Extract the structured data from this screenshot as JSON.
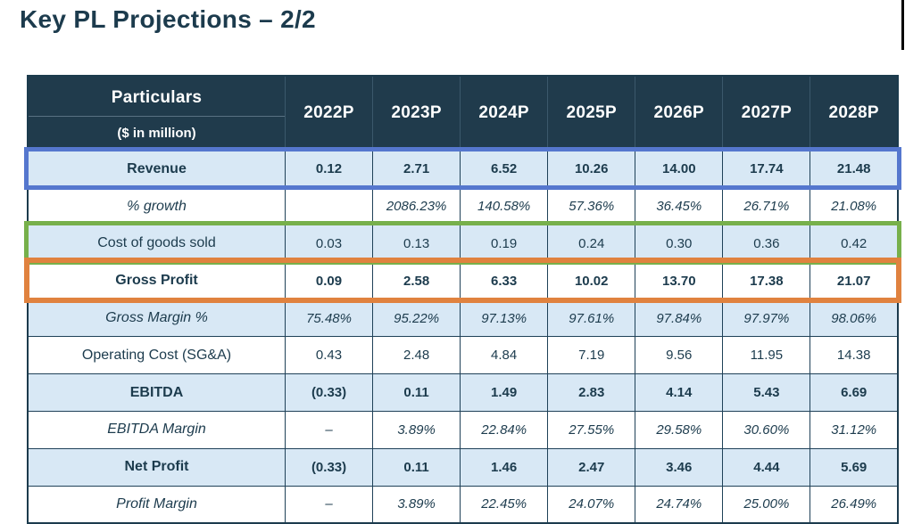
{
  "page": {
    "title": "Key PL Projections – 2/2"
  },
  "colors": {
    "title_text": "#1c3b4d",
    "header_bg": "#203b4c",
    "band_row_bg": "#d8e8f5",
    "cell_text": "#1c3b4d",
    "grid_border": "#1f4158",
    "revenue_box": "#5577ce",
    "cogs_box": "#77b04b",
    "gross_profit_box": "#e0823f",
    "edge_bar": "#000000"
  },
  "table": {
    "header": {
      "particulars": "Particulars",
      "unit_note": "($ in million)",
      "years": [
        "2022P",
        "2023P",
        "2024P",
        "2025P",
        "2026P",
        "2027P",
        "2028P"
      ]
    },
    "rows": [
      {
        "label": "Revenue",
        "style": "bold",
        "band": true,
        "highlight": "blue",
        "values": [
          "0.12",
          "2.71",
          "6.52",
          "10.26",
          "14.00",
          "17.74",
          "21.48"
        ]
      },
      {
        "label": "% growth",
        "style": "italic",
        "band": false,
        "highlight": null,
        "values": [
          "",
          "2086.23%",
          "140.58%",
          "57.36%",
          "36.45%",
          "26.71%",
          "21.08%"
        ]
      },
      {
        "label": "Cost of goods sold",
        "style": "regular",
        "band": true,
        "highlight": "green",
        "values": [
          "0.03",
          "0.13",
          "0.19",
          "0.24",
          "0.30",
          "0.36",
          "0.42"
        ]
      },
      {
        "label": "Gross Profit",
        "style": "bold",
        "band": false,
        "highlight": "orange",
        "values": [
          "0.09",
          "2.58",
          "6.33",
          "10.02",
          "13.70",
          "17.38",
          "21.07"
        ]
      },
      {
        "label": "Gross Margin %",
        "style": "italic",
        "band": true,
        "highlight": null,
        "values": [
          "75.48%",
          "95.22%",
          "97.13%",
          "97.61%",
          "97.84%",
          "97.97%",
          "98.06%"
        ]
      },
      {
        "label": "Operating Cost (SG&A)",
        "style": "regular",
        "band": false,
        "highlight": null,
        "values": [
          "0.43",
          "2.48",
          "4.84",
          "7.19",
          "9.56",
          "11.95",
          "14.38"
        ]
      },
      {
        "label": "EBITDA",
        "style": "bold",
        "band": true,
        "highlight": null,
        "values": [
          "(0.33)",
          "0.11",
          "1.49",
          "2.83",
          "4.14",
          "5.43",
          "6.69"
        ]
      },
      {
        "label": "EBITDA Margin",
        "style": "italic",
        "band": false,
        "highlight": null,
        "values": [
          "–",
          "3.89%",
          "22.84%",
          "27.55%",
          "29.58%",
          "30.60%",
          "31.12%"
        ]
      },
      {
        "label": "Net Profit",
        "style": "bold",
        "band": true,
        "highlight": null,
        "values": [
          "(0.33)",
          "0.11",
          "1.46",
          "2.47",
          "3.46",
          "4.44",
          "5.69"
        ]
      },
      {
        "label": "Profit Margin",
        "style": "italic",
        "band": false,
        "highlight": null,
        "values": [
          "–",
          "3.89%",
          "22.45%",
          "24.07%",
          "24.74%",
          "25.00%",
          "26.49%"
        ]
      }
    ]
  }
}
